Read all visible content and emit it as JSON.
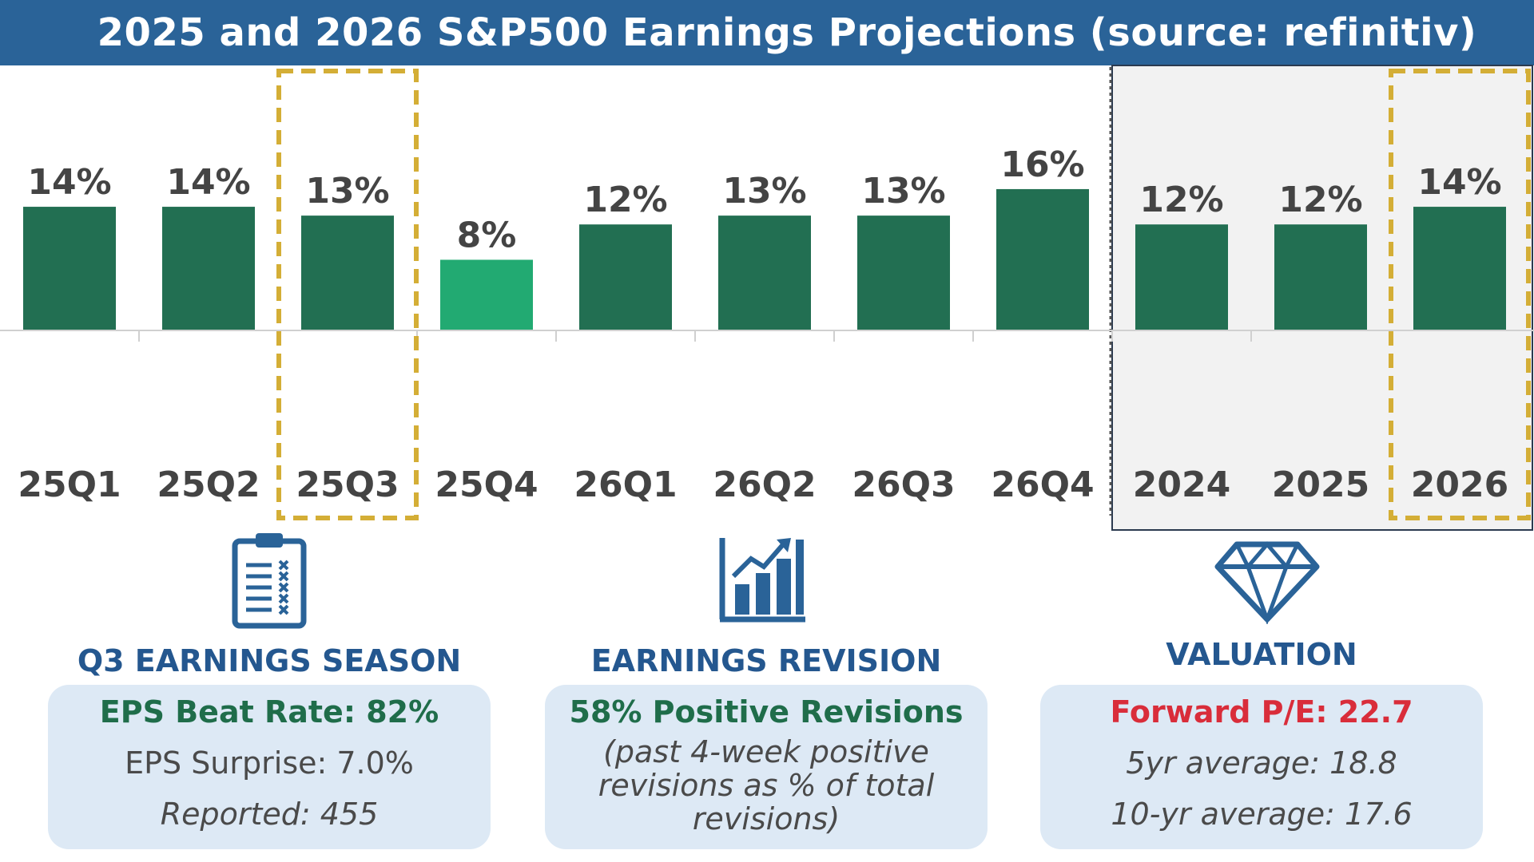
{
  "title": "2025 and 2026 S&P500 Earnings Projections (source: refinitiv)",
  "chart_data": {
    "type": "bar",
    "categories": [
      "25Q1",
      "25Q2",
      "25Q3",
      "25Q4",
      "26Q1",
      "26Q2",
      "26Q3",
      "26Q4",
      "2024",
      "2025",
      "2026"
    ],
    "values": [
      14,
      14,
      13,
      8,
      12,
      13,
      13,
      16,
      12,
      12,
      14
    ],
    "data_labels": [
      "14%",
      "14%",
      "13%",
      "8%",
      "12%",
      "13%",
      "13%",
      "16%",
      "12%",
      "12%",
      "14%"
    ],
    "highlighted": [
      "25Q3",
      "2026"
    ],
    "annual_group": [
      "2024",
      "2025",
      "2026"
    ],
    "ylim": [
      0,
      30
    ],
    "colors": {
      "bar": "#226f52",
      "bar_light": "#22aa72",
      "highlight_box": "#d4ae36",
      "annual_background": "#f2f2f2",
      "label_text": "#444444"
    }
  },
  "sections": [
    {
      "icon": "clipboard-checklist-icon",
      "title": "Q3 EARNINGS SEASON",
      "headline": "EPS Beat Rate: 82%",
      "lines": [
        "EPS Surprise: 7.0%",
        "Reported: 455"
      ]
    },
    {
      "icon": "bar-chart-trend-icon",
      "title": "EARNINGS REVISION",
      "headline": "58% Positive Revisions",
      "lines": [
        "(past 4-week positive",
        "revisions as % of total",
        "revisions)"
      ]
    },
    {
      "icon": "diamond-icon",
      "title": "VALUATION",
      "headline": "Forward P/E: 22.7",
      "lines": [
        "5yr average: 18.8",
        "10-yr average: 17.6"
      ]
    }
  ],
  "colors": {
    "title_bar": "#2a6398",
    "section_title": "#24578f",
    "card_bg": "#dde9f5",
    "headline_green": "#1f6d4a",
    "headline_red": "#d92d3a"
  }
}
